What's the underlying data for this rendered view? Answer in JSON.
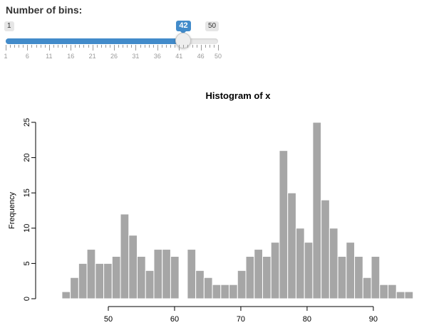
{
  "slider": {
    "label": "Number of bins:",
    "min": 1,
    "max": 50,
    "value": 42,
    "min_label": "1",
    "max_label": "50",
    "value_label": "42",
    "major_ticks": [
      "1",
      "6",
      "11",
      "16",
      "21",
      "26",
      "31",
      "36",
      "41",
      "46",
      "50"
    ],
    "accent_color": "#428bca"
  },
  "chart_data": {
    "type": "bar",
    "title": "Histogram of x",
    "xlabel": "",
    "ylabel": "Frequency",
    "bin_start": 43.0,
    "bin_width": 1.2619,
    "bar_color": "#a6a6a6",
    "values": [
      1,
      3,
      5,
      7,
      5,
      5,
      6,
      12,
      9,
      6,
      4,
      7,
      7,
      6,
      0,
      7,
      4,
      3,
      2,
      2,
      2,
      4,
      6,
      7,
      6,
      8,
      21,
      15,
      10,
      8,
      25,
      14,
      10,
      6,
      8,
      6,
      3,
      6,
      2,
      2,
      1,
      1
    ],
    "xlim": [
      40,
      97
    ],
    "ylim": [
      0,
      25
    ],
    "x_ticks": [
      "50",
      "60",
      "70",
      "80",
      "90"
    ],
    "x_tick_values": [
      50,
      60,
      70,
      80,
      90
    ],
    "y_ticks": [
      "0",
      "5",
      "10",
      "15",
      "20",
      "25"
    ],
    "y_tick_values": [
      0,
      5,
      10,
      15,
      20,
      25
    ]
  }
}
